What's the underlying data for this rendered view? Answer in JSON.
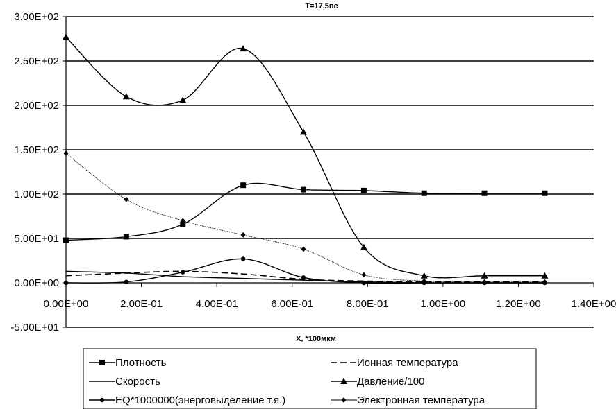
{
  "chart_data": {
    "type": "line",
    "title": "T=17.5пс",
    "xlabel": "X, *100мкм",
    "ylabel": "",
    "xlim": [
      0,
      1.4
    ],
    "ylim": [
      -50,
      300
    ],
    "x_ticks": [
      "0.00E+00",
      "2.00E-01",
      "4.00E-01",
      "6.00E-01",
      "8.00E-01",
      "1.00E+00",
      "1.20E+00",
      "1.40E+00"
    ],
    "y_ticks": [
      "-5.00E+01",
      "0.00E+00",
      "5.00E+01",
      "1.00E+02",
      "1.50E+02",
      "2.00E+02",
      "2.50E+02",
      "3.00E+02"
    ],
    "grid": "horizontal",
    "legend_position": "bottom",
    "series": [
      {
        "name": "Плотность",
        "style": "solid",
        "marker": "square",
        "color": "#000000",
        "x": [
          0.0,
          0.16,
          0.31,
          0.47,
          0.63,
          0.79,
          0.95,
          1.11,
          1.27
        ],
        "y": [
          48,
          52,
          66,
          110,
          105,
          104,
          101,
          101,
          101
        ]
      },
      {
        "name": "Ионная температура",
        "style": "dashed",
        "marker": "none",
        "color": "#000000",
        "x": [
          0.0,
          0.16,
          0.31,
          0.47,
          0.63,
          0.79,
          0.95,
          1.11,
          1.27
        ],
        "y": [
          8,
          11,
          13,
          10,
          4,
          2,
          1,
          1,
          1
        ]
      },
      {
        "name": "Скорость",
        "style": "solid",
        "marker": "none",
        "color": "#000000",
        "x": [
          0.0,
          0.16,
          0.31,
          0.47,
          0.63,
          0.79,
          0.95,
          1.11,
          1.27
        ],
        "y": [
          13,
          11,
          7,
          5,
          3,
          1,
          0,
          0,
          0
        ]
      },
      {
        "name": "Давление/100",
        "style": "solid",
        "marker": "triangle",
        "color": "#000000",
        "x": [
          0.0,
          0.16,
          0.31,
          0.47,
          0.63,
          0.79,
          0.95,
          1.11,
          1.27
        ],
        "y": [
          277,
          210,
          206,
          264,
          170,
          40,
          8,
          8,
          8
        ]
      },
      {
        "name": "EQ*1000000(энерговыделение т.я.)",
        "style": "solid",
        "marker": "circle",
        "color": "#000000",
        "x": [
          0.0,
          0.16,
          0.31,
          0.47,
          0.63,
          0.79,
          0.95,
          1.11,
          1.27
        ],
        "y": [
          0,
          1,
          12,
          27,
          6,
          0,
          0,
          0,
          0
        ]
      },
      {
        "name": "Электронная температура",
        "style": "thin",
        "marker": "diamond",
        "color": "#000000",
        "x": [
          0.0,
          0.16,
          0.31,
          0.47,
          0.63,
          0.79,
          0.95,
          1.11,
          1.27
        ],
        "y": [
          146,
          94,
          70,
          54,
          38,
          9,
          2,
          1,
          1
        ]
      }
    ],
    "legend_layout": [
      [
        "Плотность",
        "Ионная температура"
      ],
      [
        "Скорость",
        "Давление/100"
      ],
      [
        "EQ*1000000(энерговыделение т.я.)",
        "Электронная температура"
      ]
    ]
  }
}
